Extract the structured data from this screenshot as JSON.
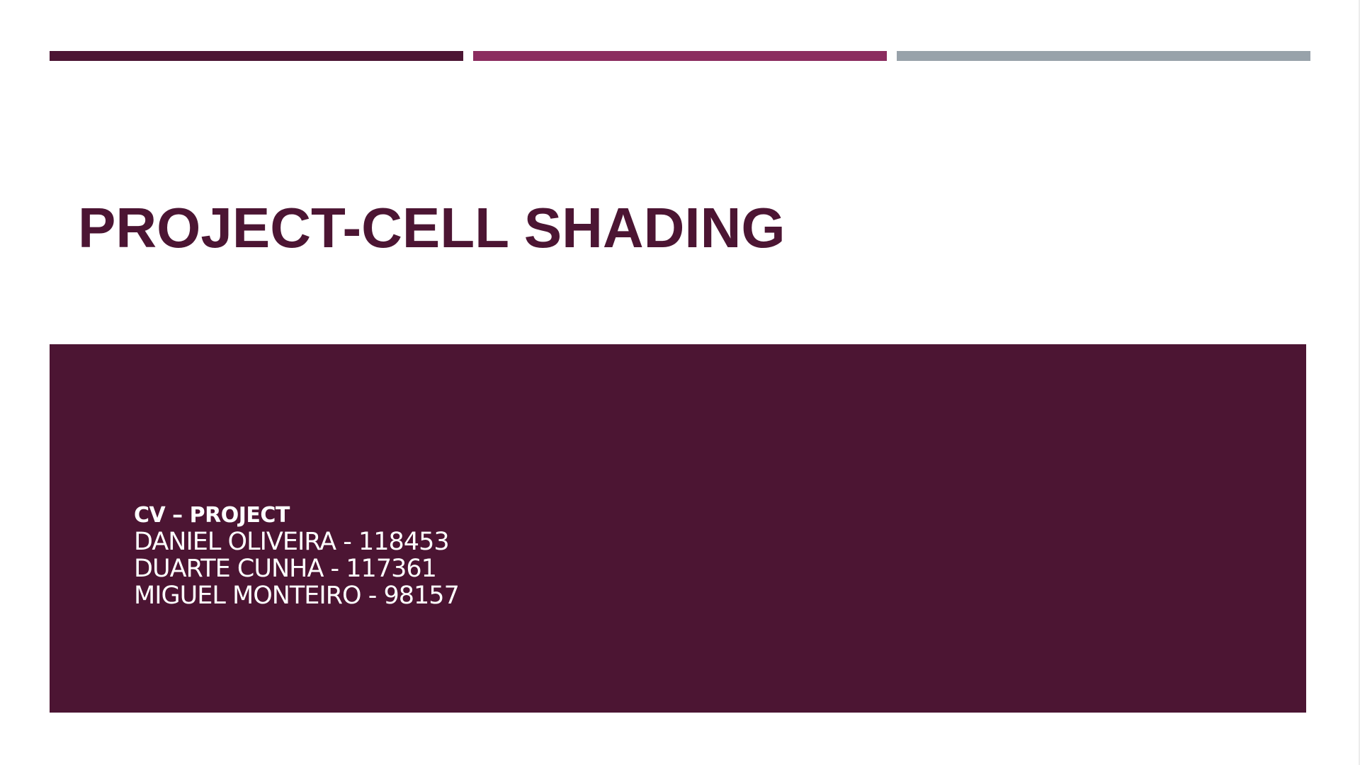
{
  "colors": {
    "plum": "#4c1533",
    "magenta": "#8b2c5f",
    "gray": "#98a2aa",
    "white": "#ffffff"
  },
  "slide": {
    "title": "PROJECT-CELL SHADING",
    "subtitle_heading": "CV – PROJECT",
    "authors": [
      "DANIEL OLIVEIRA - 118453",
      "DUARTE CUNHA - 117361",
      "MIGUEL MONTEIRO - 98157"
    ]
  }
}
